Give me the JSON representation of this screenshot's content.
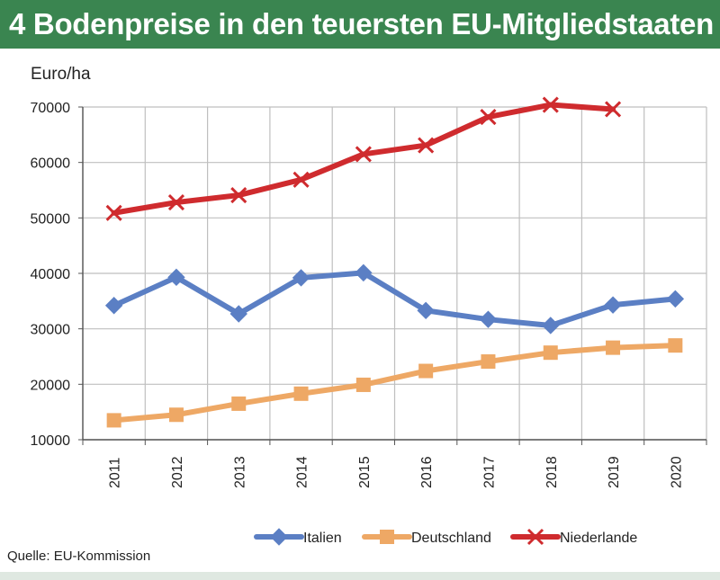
{
  "header": {
    "title": "4 Bodenpreise in den teuersten EU-Mitgliedstaaten"
  },
  "footer": {
    "source": "Quelle: EU-Kommission"
  },
  "colors": {
    "header_bg": "#3a8550",
    "italien": "#5b7fc4",
    "deutschland": "#eea865",
    "niederlande": "#cf2b2e",
    "grid": "#bfbfbf"
  },
  "chart_data": {
    "type": "line",
    "title": "4 Bodenpreise in den teuersten EU-Mitgliedstaaten",
    "ylabel": "Euro/ha",
    "xlabel": "",
    "ylim": [
      10000,
      70000
    ],
    "yticks": [
      10000,
      20000,
      30000,
      40000,
      50000,
      60000,
      70000
    ],
    "ytick_labels": [
      "10000",
      "20000",
      "30000",
      "40000",
      "50000",
      "60000",
      "70000"
    ],
    "categories": [
      "2011",
      "2012",
      "2013",
      "2014",
      "2015",
      "2016",
      "2017",
      "2018",
      "2019",
      "2020"
    ],
    "grid": true,
    "legend": "bottom",
    "series": [
      {
        "name": "Italien",
        "marker": "diamond",
        "color": "#5b7fc4",
        "values": [
          34200,
          39300,
          32700,
          39200,
          40100,
          33300,
          31700,
          30600,
          34300,
          35400
        ]
      },
      {
        "name": "Deutschland",
        "marker": "square",
        "color": "#eea865",
        "values": [
          13500,
          14500,
          16500,
          18300,
          19900,
          22400,
          24100,
          25700,
          26600,
          27000
        ]
      },
      {
        "name": "Niederlande",
        "marker": "x",
        "color": "#cf2b2e",
        "values": [
          50900,
          52800,
          54100,
          56900,
          61500,
          63100,
          68200,
          70400,
          69600,
          null
        ]
      }
    ]
  }
}
